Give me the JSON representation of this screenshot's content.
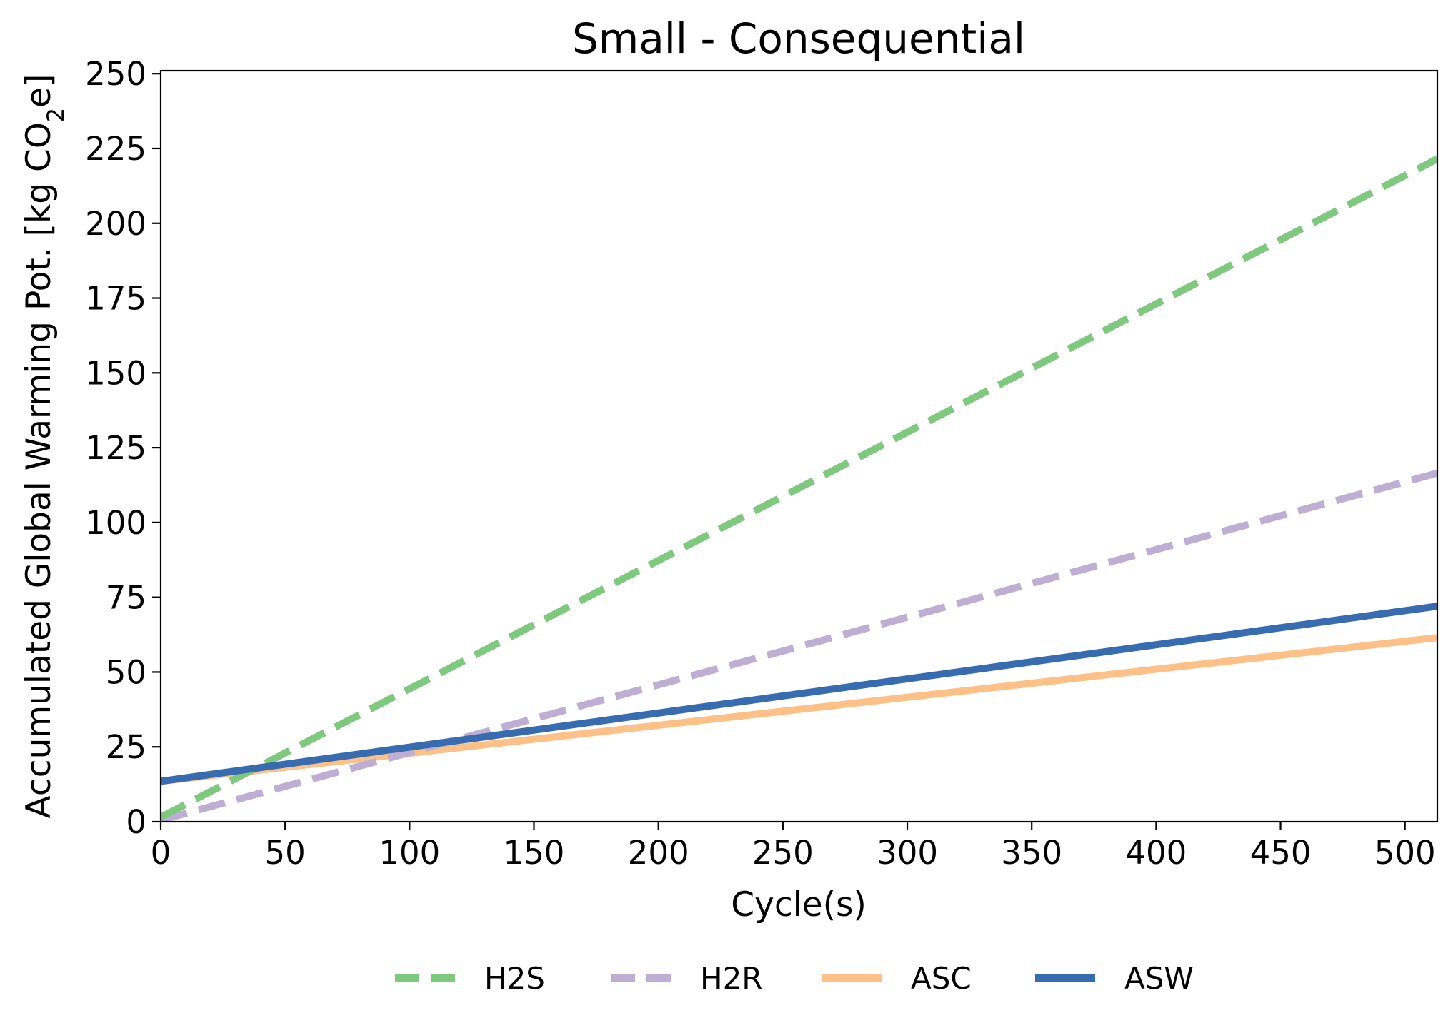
{
  "chart_data": {
    "type": "line",
    "title": "Small - Consequential",
    "xlabel": "Cycle(s)",
    "ylabel": "Accumulated Global Warming Pot. [kg CO",
    "ylabel_subscript": "2",
    "ylabel_suffix": "e]",
    "xlim": [
      0,
      513
    ],
    "ylim": [
      0,
      251
    ],
    "x_ticks": [
      0,
      50,
      100,
      150,
      200,
      250,
      300,
      350,
      400,
      450,
      500
    ],
    "y_ticks": [
      0,
      25,
      50,
      75,
      100,
      125,
      150,
      175,
      200,
      225,
      250
    ],
    "grid": false,
    "legend_position": "bottom-center",
    "series": [
      {
        "name": "H2S",
        "color": "#7fc97f",
        "style": "dashed",
        "x": [
          0,
          513
        ],
        "y": [
          1.5,
          221.5
        ]
      },
      {
        "name": "H2R",
        "color": "#beaed4",
        "style": "dashed",
        "x": [
          0,
          513
        ],
        "y": [
          0.5,
          116.5
        ]
      },
      {
        "name": "ASC",
        "color": "#fdc086",
        "style": "solid",
        "x": [
          0,
          513
        ],
        "y": [
          13.5,
          61.5
        ]
      },
      {
        "name": "ASW",
        "color": "#386cb0",
        "style": "solid",
        "x": [
          0,
          513
        ],
        "y": [
          13.5,
          72.0
        ]
      }
    ]
  }
}
